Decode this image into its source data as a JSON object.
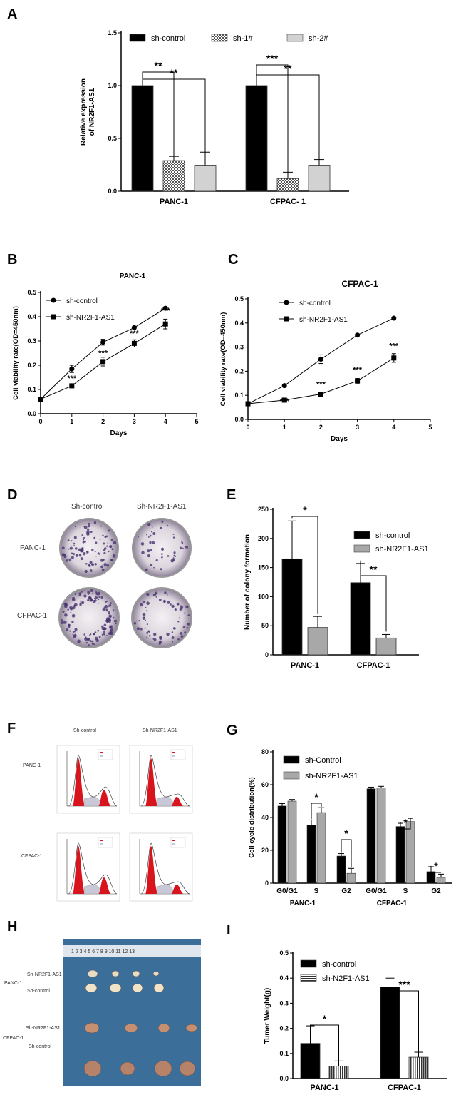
{
  "panels": {
    "A": "A",
    "B": "B",
    "C": "C",
    "D": "D",
    "E": "E",
    "F": "F",
    "G": "G",
    "H": "H",
    "I": "I"
  },
  "photos": {
    "D": {
      "col1": "Sh-control",
      "col2": "Sh-NR2F1-AS1",
      "row1": "PANC-1",
      "row2": "CFPAC-1"
    },
    "F": {
      "col1": "Sh-control",
      "col2": "Sh-NR2F1-AS1",
      "row1": "PANC-1",
      "row2": "CFPAC-1"
    },
    "H": {
      "row1a": "Sh-NR2F1-AS1",
      "row1b": "Sh-control",
      "row1": "PANC-1",
      "row2a": "Sh-NR2F1-AS1",
      "row2b": "Sh-control",
      "row2": "CFPAC-1",
      "ruler": "1 2 3 4 5 6 7 8 9 10 11 12 13"
    }
  },
  "colors": {
    "black": "#000000",
    "gray": "#a8a8a8",
    "light": "#d4d4d4",
    "photo_bg": "#3c6e9a"
  },
  "chart_data": [
    {
      "id": "A",
      "type": "bar",
      "categories": [
        "PANC-1",
        "CFPAC- 1"
      ],
      "series": [
        {
          "name": "sh-control",
          "values": [
            1.0,
            1.0
          ],
          "errors": [
            0,
            0
          ]
        },
        {
          "name": "sh-1#",
          "values": [
            0.29,
            0.12
          ],
          "errors": [
            0.04,
            0.06
          ]
        },
        {
          "name": "sh-2#",
          "values": [
            0.24,
            0.24
          ],
          "errors": [
            0.13,
            0.06
          ]
        }
      ],
      "ylabel": "Relative expression of NR2F1-AS1",
      "ylim": [
        0,
        1.5
      ],
      "yticks": [
        "0.0",
        "0.5",
        "1.0",
        "1.5"
      ],
      "significance": [
        "**",
        "**",
        "***",
        "**"
      ]
    },
    {
      "id": "B",
      "type": "line",
      "title": "PANC-1",
      "x": [
        0,
        1,
        2,
        3,
        4
      ],
      "series": [
        {
          "name": "sh-control",
          "values": [
            0.06,
            0.185,
            0.295,
            0.355,
            0.435
          ],
          "errors": [
            0,
            0.015,
            0.012,
            0.005,
            0.005
          ]
        },
        {
          "name": "sh-NR2F1-AS1",
          "values": [
            0.06,
            0.115,
            0.215,
            0.29,
            0.37
          ],
          "errors": [
            0,
            0.005,
            0.018,
            0.015,
            0.02
          ]
        }
      ],
      "xlabel": "Days",
      "ylabel": "Cell viability rate(OD=450nm)",
      "xlim": [
        0,
        5
      ],
      "ylim": [
        0,
        0.5
      ],
      "xticks": [
        "0",
        "1",
        "2",
        "3",
        "4",
        "5"
      ],
      "yticks": [
        "0.0",
        "0.1",
        "0.2",
        "0.3",
        "0.4",
        "0.5"
      ],
      "significance": [
        "***",
        "***",
        "***",
        "***"
      ]
    },
    {
      "id": "C",
      "type": "line",
      "title": "CFPAC-1",
      "x": [
        0,
        1,
        2,
        3,
        4
      ],
      "series": [
        {
          "name": "sh-control",
          "values": [
            0.065,
            0.14,
            0.25,
            0.35,
            0.42
          ],
          "errors": [
            0,
            0.005,
            0.018,
            0.005,
            0.005
          ]
        },
        {
          "name": "sh-NR2F1-AS1",
          "values": [
            0.065,
            0.08,
            0.105,
            0.16,
            0.255
          ],
          "errors": [
            0,
            0.005,
            0.005,
            0.01,
            0.018
          ]
        }
      ],
      "xlabel": "Days",
      "ylabel": "Cell viability rate(OD=450nm)",
      "xlim": [
        0,
        5
      ],
      "ylim": [
        0,
        0.5
      ],
      "xticks": [
        "0",
        "1",
        "2",
        "3",
        "4",
        "5"
      ],
      "yticks": [
        "0.0",
        "0.1",
        "0.2",
        "0.3",
        "0.4",
        "0.5"
      ],
      "significance": [
        "***",
        "***",
        "***",
        "***"
      ]
    },
    {
      "id": "E",
      "type": "bar",
      "categories": [
        "PANC-1",
        "CFPAC-1"
      ],
      "series": [
        {
          "name": "sh-control",
          "values": [
            165,
            124
          ],
          "errors": [
            65,
            33
          ]
        },
        {
          "name": "sh-NR2F1-AS1",
          "values": [
            47,
            29
          ],
          "errors": [
            19,
            6
          ]
        }
      ],
      "ylabel": "Number of colony formation",
      "ylim": [
        0,
        250
      ],
      "yticks": [
        "0",
        "50",
        "100",
        "150",
        "200",
        "250"
      ],
      "significance": [
        "*",
        "**"
      ]
    },
    {
      "id": "G",
      "type": "bar",
      "categories": [
        "G0/G1",
        "S",
        "G2",
        "G0/G1",
        "S",
        "G2"
      ],
      "groups": [
        "PANC-1",
        "CFPAC-1"
      ],
      "series": [
        {
          "name": "sh-Control",
          "values": [
            47,
            35.5,
            16.5,
            57.5,
            34.5,
            7
          ],
          "errors": [
            1.5,
            3,
            1.5,
            1,
            2,
            3
          ]
        },
        {
          "name": "sh-NR2F1-AS1",
          "values": [
            50,
            43,
            6,
            58,
            37.5,
            3.5
          ],
          "errors": [
            1,
            3,
            3,
            1,
            2,
            2
          ]
        }
      ],
      "ylabel": "Cell cycle distribution(%)",
      "ylim": [
        0,
        80
      ],
      "yticks": [
        "0",
        "20",
        "40",
        "60",
        "80"
      ],
      "significance": [
        "*",
        "*",
        "*",
        "*"
      ]
    },
    {
      "id": "I",
      "type": "bar",
      "categories": [
        "PANC-1",
        "CFPAC-1"
      ],
      "series": [
        {
          "name": "sh-control",
          "values": [
            0.14,
            0.365
          ],
          "errors": [
            0.07,
            0.035
          ]
        },
        {
          "name": "sh-N2F1-AS1",
          "values": [
            0.05,
            0.085
          ],
          "errors": [
            0.02,
            0.02
          ]
        }
      ],
      "ylabel": "Tumer Weight(g)",
      "ylim": [
        0,
        0.5
      ],
      "yticks": [
        "0.0",
        "0.1",
        "0.2",
        "0.3",
        "0.4",
        "0.5"
      ],
      "significance": [
        "*",
        "***"
      ]
    }
  ]
}
